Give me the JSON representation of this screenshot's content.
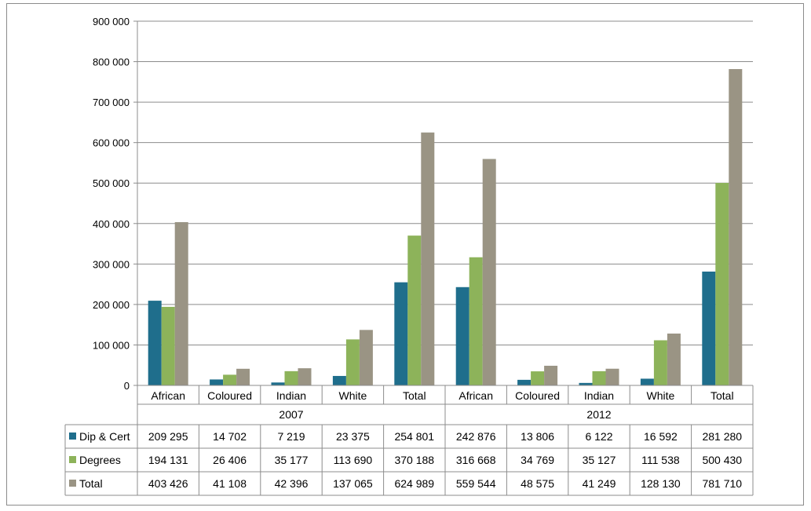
{
  "chart_data": {
    "type": "bar",
    "groups": [
      {
        "label": "2007",
        "categories": [
          "African",
          "Coloured",
          "Indian",
          "White",
          "Total"
        ]
      },
      {
        "label": "2012",
        "categories": [
          "African",
          "Coloured",
          "Indian",
          "White",
          "Total"
        ]
      }
    ],
    "categories": [
      "African",
      "Coloured",
      "Indian",
      "White",
      "Total",
      "African",
      "Coloured",
      "Indian",
      "White",
      "Total"
    ],
    "series": [
      {
        "name": "Dip & Cert",
        "color": "#1f6e8c",
        "values": [
          209295,
          14702,
          7219,
          23375,
          254801,
          242876,
          13806,
          6122,
          16592,
          281280
        ],
        "labels": [
          "209 295",
          "14 702",
          "7 219",
          "23 375",
          "254 801",
          "242 876",
          "13 806",
          "6 122",
          "16 592",
          "281 280"
        ]
      },
      {
        "name": "Degrees",
        "color": "#8db35a",
        "values": [
          194131,
          26406,
          35177,
          113690,
          370188,
          316668,
          34769,
          35127,
          111538,
          500430
        ],
        "labels": [
          "194 131",
          "26 406",
          "35 177",
          "113 690",
          "370 188",
          "316 668",
          "34 769",
          "35 127",
          "111 538",
          "500 430"
        ]
      },
      {
        "name": "Total",
        "color": "#9a9484",
        "values": [
          403426,
          41108,
          42396,
          137065,
          624989,
          559544,
          48575,
          41249,
          128130,
          781710
        ],
        "labels": [
          "403 426",
          "41 108",
          "42 396",
          "137 065",
          "624 989",
          "559 544",
          "48 575",
          "41 249",
          "128 130",
          "781 710"
        ]
      }
    ],
    "ylim": [
      0,
      900000
    ],
    "yticks": [
      0,
      100000,
      200000,
      300000,
      400000,
      500000,
      600000,
      700000,
      800000,
      900000
    ],
    "ytick_labels": [
      "0",
      "100 000",
      "200 000",
      "300 000",
      "400 000",
      "500 000",
      "600 000",
      "700 000",
      "800 000",
      "900 000"
    ],
    "grid": true,
    "legend": "data-table"
  }
}
